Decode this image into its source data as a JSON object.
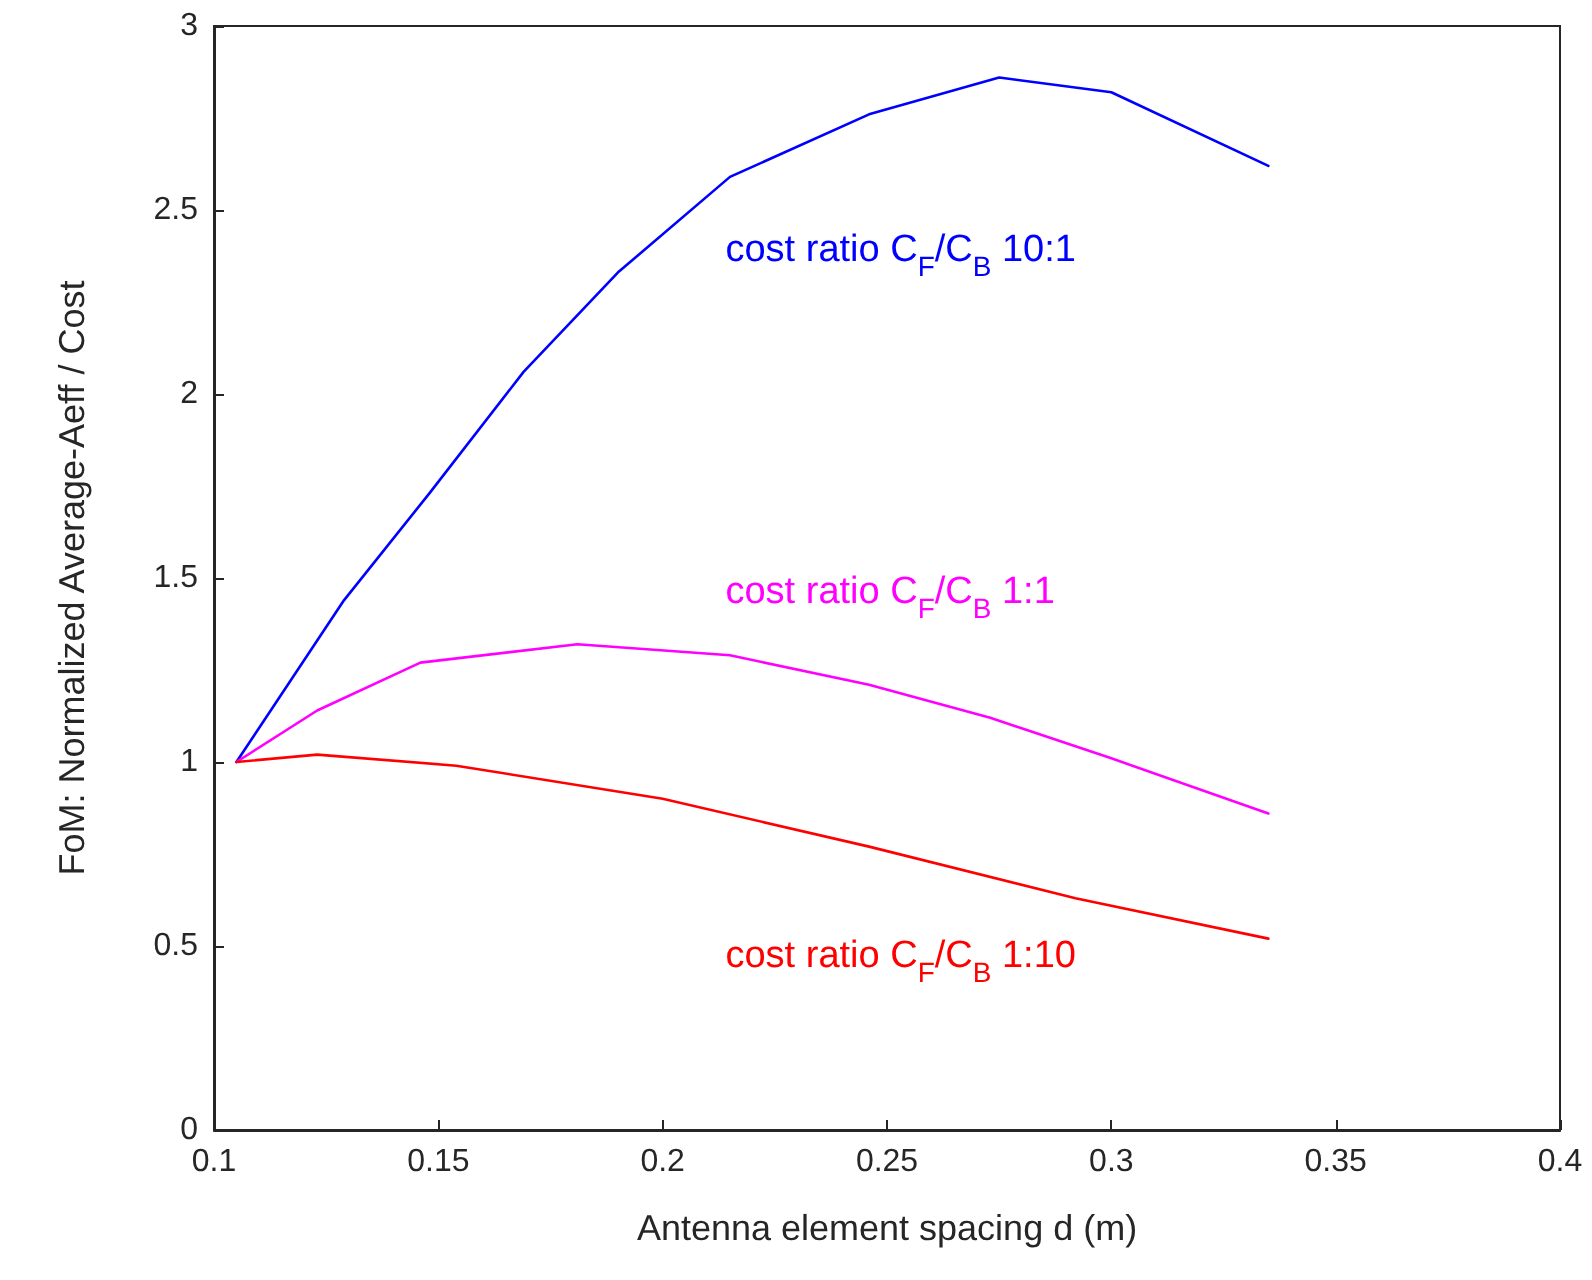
{
  "chart_data": {
    "type": "line",
    "xlabel": "Antenna element spacing d (m)",
    "ylabel": "FoM: Normalized Average-Aeff / Cost",
    "xlim": [
      0.1,
      0.4
    ],
    "xticks": [
      0.1,
      0.15,
      0.2,
      0.25,
      0.3,
      0.35,
      0.4
    ],
    "ylim": [
      0,
      3
    ],
    "yticks": [
      0,
      0.5,
      1,
      1.5,
      2,
      2.5,
      3
    ],
    "grid": false,
    "legend": false,
    "marker": "none",
    "line_style": "solid",
    "series": [
      {
        "name": "cost ratio C$_{F}$/C$_{B}$ 10:1",
        "color": "#0000ff",
        "x": [
          0.105,
          0.129,
          0.148,
          0.169,
          0.19,
          0.215,
          0.246,
          0.275,
          0.3,
          0.335
        ],
        "values": [
          1.0,
          1.44,
          1.73,
          2.06,
          2.33,
          2.59,
          2.76,
          2.86,
          2.82,
          2.62
        ]
      },
      {
        "name": "cost ratio C$_{F}$/C$_{B}$ 1:1",
        "color": "#ff00ff",
        "x": [
          0.105,
          0.123,
          0.146,
          0.181,
          0.215,
          0.246,
          0.273,
          0.3,
          0.335
        ],
        "values": [
          1.0,
          1.14,
          1.27,
          1.32,
          1.29,
          1.21,
          1.12,
          1.01,
          0.86
        ]
      },
      {
        "name": "cost ratio C$_{F}$/C$_{B}$ 1:10",
        "color": "#ff0000",
        "x": [
          0.105,
          0.123,
          0.154,
          0.2,
          0.246,
          0.292,
          0.335
        ],
        "values": [
          1.0,
          1.02,
          0.99,
          0.9,
          0.77,
          0.63,
          0.52
        ]
      }
    ]
  }
}
